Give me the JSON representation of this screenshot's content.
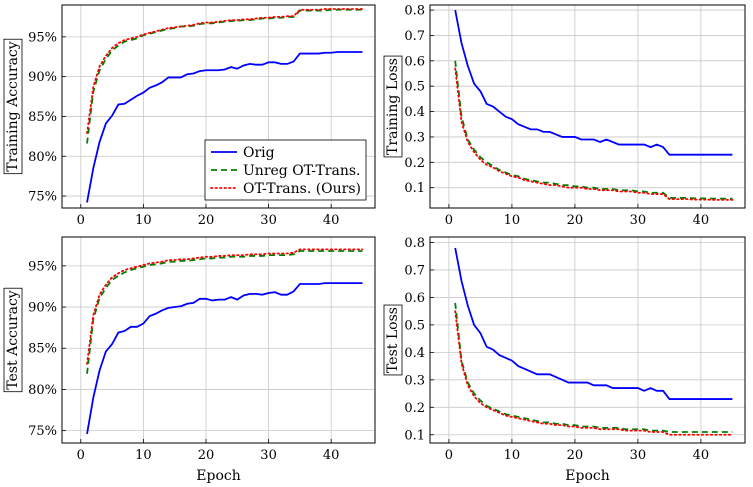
{
  "chart_data": [
    {
      "id": "train-acc",
      "type": "line",
      "ylabel": "Training Accuracy",
      "xlabel": "",
      "xlim": [
        -3,
        47
      ],
      "ylim": [
        73.5,
        99
      ],
      "xticks": [
        0,
        10,
        20,
        30,
        40
      ],
      "xtick_labels": [
        "0",
        "10",
        "20",
        "30",
        "40"
      ],
      "yticks": [
        75,
        80,
        85,
        90,
        95
      ],
      "ytick_labels": [
        "75%",
        "80%",
        "85%",
        "90%",
        "95%"
      ],
      "grid": true,
      "legend": true,
      "legend_position": "center-right",
      "x": [
        1,
        2,
        3,
        4,
        5,
        6,
        7,
        8,
        9,
        10,
        11,
        12,
        13,
        14,
        15,
        16,
        17,
        18,
        19,
        20,
        21,
        22,
        23,
        24,
        25,
        26,
        27,
        28,
        29,
        30,
        31,
        32,
        33,
        34,
        35,
        36,
        37,
        38,
        39,
        40,
        41,
        42,
        43,
        44,
        45
      ],
      "series": [
        {
          "name": "Orig",
          "color": "#0000ff",
          "dash": "solid",
          "values": [
            74.2,
            78.5,
            81.8,
            84.1,
            85.1,
            86.5,
            86.6,
            87.1,
            87.6,
            88.0,
            88.6,
            88.9,
            89.3,
            89.9,
            89.9,
            89.9,
            90.3,
            90.4,
            90.7,
            90.8,
            90.8,
            90.8,
            90.9,
            91.2,
            91.0,
            91.4,
            91.6,
            91.5,
            91.5,
            91.8,
            91.8,
            91.6,
            91.6,
            91.9,
            92.9,
            92.9,
            92.9,
            92.9,
            93.0,
            93.0,
            93.1,
            93.1,
            93.1,
            93.1,
            93.1
          ]
        },
        {
          "name": "Unreg OT-Trans.",
          "color": "#008000",
          "dash": "6,4",
          "values": [
            81.6,
            88.1,
            90.8,
            92.2,
            93.3,
            93.9,
            94.4,
            94.6,
            94.8,
            95.2,
            95.4,
            95.6,
            95.8,
            96.0,
            96.1,
            96.3,
            96.3,
            96.4,
            96.6,
            96.7,
            96.7,
            96.8,
            96.9,
            97.0,
            97.0,
            97.1,
            97.1,
            97.2,
            97.3,
            97.3,
            97.4,
            97.4,
            97.5,
            97.5,
            98.3,
            98.3,
            98.3,
            98.3,
            98.3,
            98.4,
            98.4,
            98.4,
            98.4,
            98.4,
            98.4
          ]
        },
        {
          "name": "OT-Trans. (Ours)",
          "color": "#ff0000",
          "dash": "1.5,3",
          "values": [
            82.9,
            88.7,
            91.3,
            92.6,
            93.6,
            94.2,
            94.6,
            94.8,
            95.0,
            95.3,
            95.5,
            95.7,
            95.9,
            96.1,
            96.2,
            96.3,
            96.4,
            96.5,
            96.7,
            96.8,
            96.8,
            96.9,
            97.0,
            97.1,
            97.1,
            97.2,
            97.2,
            97.3,
            97.4,
            97.4,
            97.5,
            97.5,
            97.6,
            97.6,
            98.4,
            98.4,
            98.4,
            98.4,
            98.5,
            98.5,
            98.5,
            98.5,
            98.5,
            98.5,
            98.5
          ]
        }
      ]
    },
    {
      "id": "train-loss",
      "type": "line",
      "ylabel": "Training Loss",
      "xlabel": "",
      "xlim": [
        -3,
        47
      ],
      "ylim": [
        0.02,
        0.82
      ],
      "xticks": [
        0,
        10,
        20,
        30,
        40
      ],
      "xtick_labels": [
        "0",
        "10",
        "20",
        "30",
        "40"
      ],
      "yticks": [
        0.1,
        0.2,
        0.3,
        0.4,
        0.5,
        0.6,
        0.7,
        0.8
      ],
      "ytick_labels": [
        "0.1",
        "0.2",
        "0.3",
        "0.4",
        "0.5",
        "0.6",
        "0.7",
        "0.8"
      ],
      "grid": true,
      "legend": false,
      "x": [
        1,
        2,
        3,
        4,
        5,
        6,
        7,
        8,
        9,
        10,
        11,
        12,
        13,
        14,
        15,
        16,
        17,
        18,
        19,
        20,
        21,
        22,
        23,
        24,
        25,
        26,
        27,
        28,
        29,
        30,
        31,
        32,
        33,
        34,
        35,
        36,
        37,
        38,
        39,
        40,
        41,
        42,
        43,
        44,
        45
      ],
      "series": [
        {
          "name": "Orig",
          "color": "#0000ff",
          "dash": "solid",
          "values": [
            0.8,
            0.67,
            0.58,
            0.51,
            0.48,
            0.43,
            0.42,
            0.4,
            0.38,
            0.37,
            0.35,
            0.34,
            0.33,
            0.33,
            0.32,
            0.32,
            0.31,
            0.3,
            0.3,
            0.3,
            0.29,
            0.29,
            0.29,
            0.28,
            0.29,
            0.28,
            0.27,
            0.27,
            0.27,
            0.27,
            0.27,
            0.26,
            0.27,
            0.26,
            0.23,
            0.23,
            0.23,
            0.23,
            0.23,
            0.23,
            0.23,
            0.23,
            0.23,
            0.23,
            0.23
          ]
        },
        {
          "name": "Unreg OT-Trans.",
          "color": "#008000",
          "dash": "6,4",
          "values": [
            0.6,
            0.38,
            0.29,
            0.25,
            0.22,
            0.2,
            0.185,
            0.17,
            0.16,
            0.15,
            0.145,
            0.135,
            0.13,
            0.125,
            0.12,
            0.12,
            0.115,
            0.11,
            0.11,
            0.105,
            0.105,
            0.1,
            0.1,
            0.095,
            0.095,
            0.095,
            0.09,
            0.09,
            0.09,
            0.085,
            0.085,
            0.08,
            0.08,
            0.08,
            0.06,
            0.06,
            0.06,
            0.06,
            0.058,
            0.058,
            0.058,
            0.057,
            0.057,
            0.057,
            0.057
          ]
        },
        {
          "name": "OT-Trans. (Ours)",
          "color": "#ff0000",
          "dash": "1.5,3",
          "values": [
            0.57,
            0.36,
            0.28,
            0.24,
            0.21,
            0.19,
            0.18,
            0.165,
            0.155,
            0.145,
            0.14,
            0.13,
            0.125,
            0.12,
            0.115,
            0.11,
            0.11,
            0.105,
            0.1,
            0.1,
            0.1,
            0.095,
            0.095,
            0.09,
            0.09,
            0.09,
            0.085,
            0.085,
            0.085,
            0.08,
            0.08,
            0.075,
            0.075,
            0.075,
            0.055,
            0.055,
            0.055,
            0.055,
            0.053,
            0.053,
            0.053,
            0.052,
            0.052,
            0.052,
            0.052
          ]
        }
      ]
    },
    {
      "id": "test-acc",
      "type": "line",
      "ylabel": "Test Accuracy",
      "xlabel": "Epoch",
      "xlim": [
        -3,
        47
      ],
      "ylim": [
        73.5,
        98.5
      ],
      "xticks": [
        0,
        10,
        20,
        30,
        40
      ],
      "xtick_labels": [
        "0",
        "10",
        "20",
        "30",
        "40"
      ],
      "yticks": [
        75,
        80,
        85,
        90,
        95
      ],
      "ytick_labels": [
        "75%",
        "80%",
        "85%",
        "90%",
        "95%"
      ],
      "grid": true,
      "legend": false,
      "x": [
        1,
        2,
        3,
        4,
        5,
        6,
        7,
        8,
        9,
        10,
        11,
        12,
        13,
        14,
        15,
        16,
        17,
        18,
        19,
        20,
        21,
        22,
        23,
        24,
        25,
        26,
        27,
        28,
        29,
        30,
        31,
        32,
        33,
        34,
        35,
        36,
        37,
        38,
        39,
        40,
        41,
        42,
        43,
        44,
        45
      ],
      "series": [
        {
          "name": "Orig",
          "color": "#0000ff",
          "dash": "solid",
          "values": [
            74.6,
            79.0,
            82.3,
            84.6,
            85.5,
            86.9,
            87.1,
            87.6,
            87.6,
            88.0,
            88.9,
            89.2,
            89.6,
            89.9,
            90.0,
            90.1,
            90.4,
            90.5,
            91.0,
            91.0,
            90.8,
            90.9,
            90.9,
            91.2,
            90.9,
            91.4,
            91.6,
            91.6,
            91.5,
            91.7,
            91.8,
            91.5,
            91.5,
            91.9,
            92.8,
            92.8,
            92.8,
            92.8,
            92.9,
            92.9,
            92.9,
            92.9,
            92.9,
            92.9,
            92.9
          ]
        },
        {
          "name": "Unreg OT-Trans.",
          "color": "#008000",
          "dash": "6,4",
          "values": [
            81.9,
            88.5,
            91.1,
            92.3,
            93.3,
            93.8,
            94.2,
            94.5,
            94.7,
            94.9,
            95.1,
            95.2,
            95.3,
            95.5,
            95.5,
            95.6,
            95.6,
            95.7,
            95.8,
            95.9,
            95.9,
            96.0,
            96.0,
            96.1,
            96.1,
            96.1,
            96.2,
            96.2,
            96.2,
            96.3,
            96.3,
            96.3,
            96.3,
            96.4,
            96.8,
            96.8,
            96.8,
            96.8,
            96.8,
            96.8,
            96.8,
            96.8,
            96.8,
            96.8,
            96.8
          ]
        },
        {
          "name": "OT-Trans. (Ours)",
          "color": "#ff0000",
          "dash": "1.5,3",
          "values": [
            83.1,
            89.0,
            91.5,
            92.7,
            93.6,
            94.1,
            94.5,
            94.7,
            94.9,
            95.1,
            95.3,
            95.4,
            95.5,
            95.7,
            95.7,
            95.8,
            95.8,
            95.9,
            96.0,
            96.1,
            96.1,
            96.2,
            96.2,
            96.3,
            96.3,
            96.3,
            96.4,
            96.4,
            96.4,
            96.5,
            96.5,
            96.5,
            96.5,
            96.6,
            97.0,
            97.0,
            97.0,
            97.0,
            97.0,
            97.0,
            97.0,
            97.0,
            97.0,
            97.0,
            97.0
          ]
        }
      ]
    },
    {
      "id": "test-loss",
      "type": "line",
      "ylabel": "Test Loss",
      "xlabel": "Epoch",
      "xlim": [
        -3,
        47
      ],
      "ylim": [
        0.07,
        0.82
      ],
      "xticks": [
        0,
        10,
        20,
        30,
        40
      ],
      "xtick_labels": [
        "0",
        "10",
        "20",
        "30",
        "40"
      ],
      "yticks": [
        0.1,
        0.2,
        0.3,
        0.4,
        0.5,
        0.6,
        0.7,
        0.8
      ],
      "ytick_labels": [
        "0.1",
        "0.2",
        "0.3",
        "0.4",
        "0.5",
        "0.6",
        "0.7",
        "0.8"
      ],
      "grid": true,
      "legend": false,
      "x": [
        1,
        2,
        3,
        4,
        5,
        6,
        7,
        8,
        9,
        10,
        11,
        12,
        13,
        14,
        15,
        16,
        17,
        18,
        19,
        20,
        21,
        22,
        23,
        24,
        25,
        26,
        27,
        28,
        29,
        30,
        31,
        32,
        33,
        34,
        35,
        36,
        37,
        38,
        39,
        40,
        41,
        42,
        43,
        44,
        45
      ],
      "series": [
        {
          "name": "Orig",
          "color": "#0000ff",
          "dash": "solid",
          "values": [
            0.78,
            0.66,
            0.57,
            0.5,
            0.47,
            0.42,
            0.41,
            0.39,
            0.38,
            0.37,
            0.35,
            0.34,
            0.33,
            0.32,
            0.32,
            0.32,
            0.31,
            0.3,
            0.29,
            0.29,
            0.29,
            0.29,
            0.28,
            0.28,
            0.28,
            0.27,
            0.27,
            0.27,
            0.27,
            0.27,
            0.26,
            0.27,
            0.26,
            0.26,
            0.23,
            0.23,
            0.23,
            0.23,
            0.23,
            0.23,
            0.23,
            0.23,
            0.23,
            0.23,
            0.23
          ]
        },
        {
          "name": "Unreg OT-Trans.",
          "color": "#008000",
          "dash": "6,4",
          "values": [
            0.58,
            0.37,
            0.29,
            0.25,
            0.225,
            0.205,
            0.195,
            0.185,
            0.175,
            0.17,
            0.165,
            0.16,
            0.155,
            0.15,
            0.145,
            0.145,
            0.14,
            0.14,
            0.135,
            0.135,
            0.13,
            0.13,
            0.13,
            0.125,
            0.125,
            0.125,
            0.125,
            0.12,
            0.12,
            0.12,
            0.12,
            0.115,
            0.115,
            0.115,
            0.11,
            0.11,
            0.11,
            0.11,
            0.11,
            0.11,
            0.11,
            0.11,
            0.11,
            0.11,
            0.11
          ]
        },
        {
          "name": "OT-Trans. (Ours)",
          "color": "#ff0000",
          "dash": "1.5,3",
          "values": [
            0.55,
            0.36,
            0.28,
            0.24,
            0.215,
            0.2,
            0.19,
            0.18,
            0.17,
            0.165,
            0.16,
            0.155,
            0.15,
            0.145,
            0.14,
            0.14,
            0.135,
            0.135,
            0.13,
            0.13,
            0.125,
            0.125,
            0.125,
            0.12,
            0.12,
            0.12,
            0.12,
            0.115,
            0.115,
            0.115,
            0.115,
            0.11,
            0.11,
            0.11,
            0.1,
            0.1,
            0.1,
            0.1,
            0.1,
            0.1,
            0.1,
            0.1,
            0.1,
            0.1,
            0.1
          ]
        }
      ]
    }
  ]
}
